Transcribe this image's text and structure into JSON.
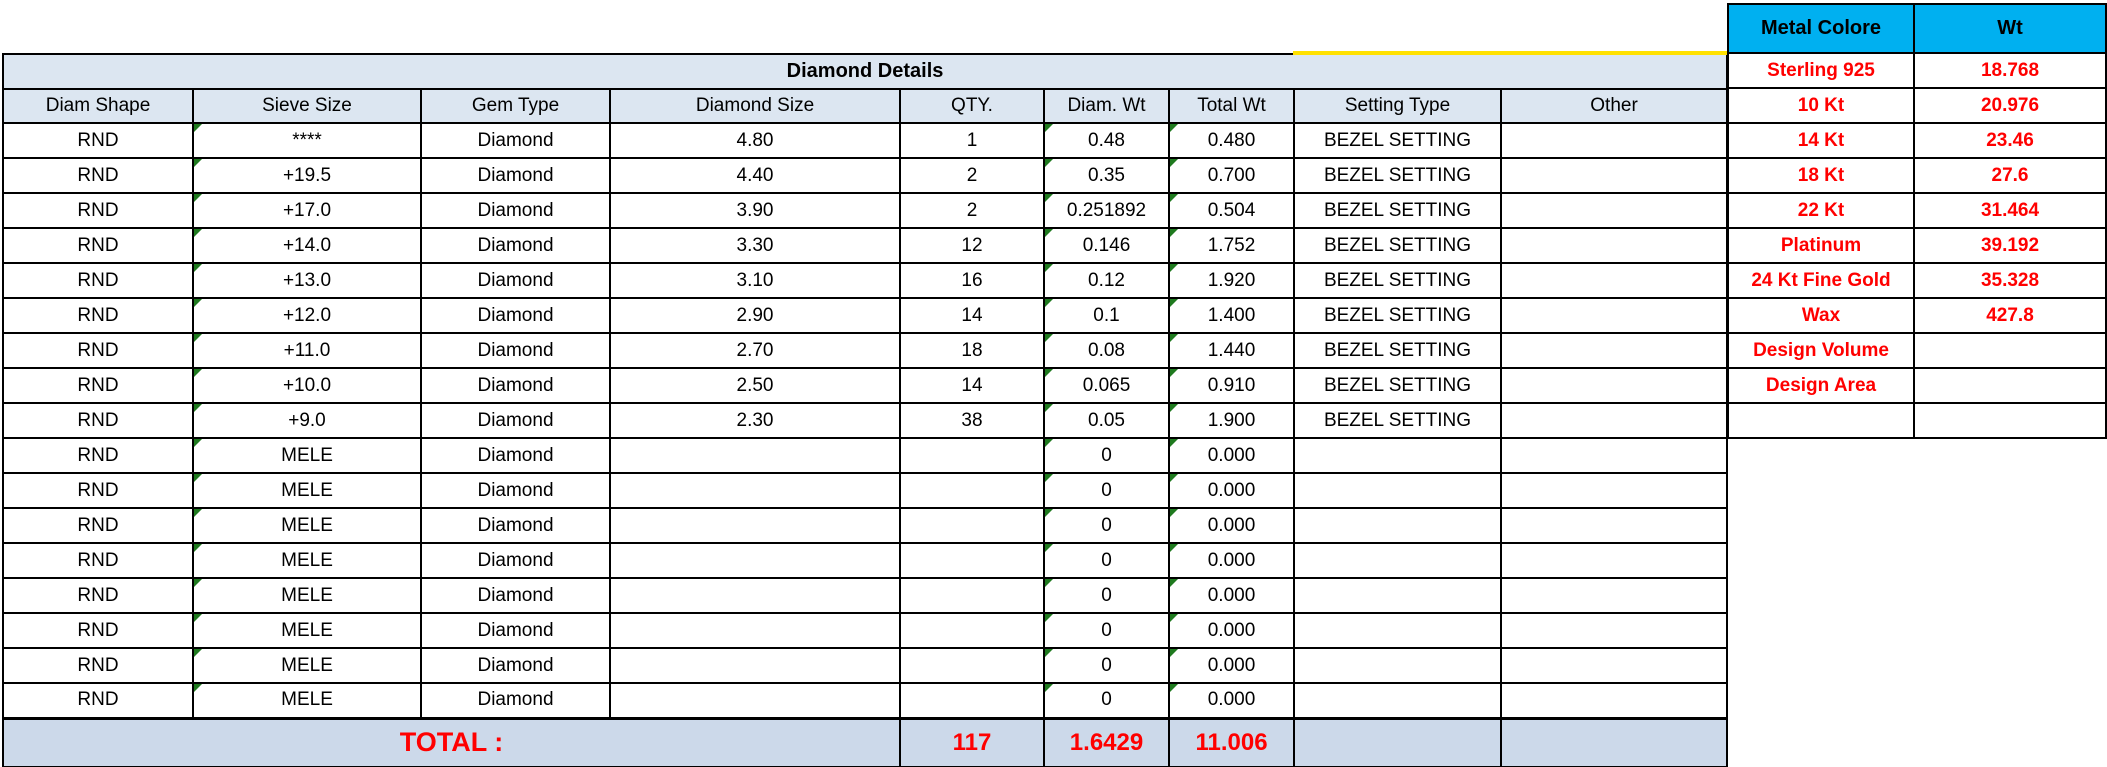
{
  "main_table": {
    "title": "Diamond Details",
    "headers": [
      "Diam Shape",
      "Sieve Size",
      "Gem Type",
      "Diamond Size",
      "QTY.",
      "Diam. Wt",
      "Total Wt",
      "Setting Type",
      "Other"
    ],
    "rows": [
      [
        "RND",
        "****",
        "Diamond",
        "4.80",
        "1",
        "0.48",
        "0.480",
        "BEZEL SETTING",
        ""
      ],
      [
        "RND",
        "+19.5",
        "Diamond",
        "4.40",
        "2",
        "0.35",
        "0.700",
        "BEZEL SETTING",
        ""
      ],
      [
        "RND",
        "+17.0",
        "Diamond",
        "3.90",
        "2",
        "0.251892",
        "0.504",
        "BEZEL SETTING",
        ""
      ],
      [
        "RND",
        "+14.0",
        "Diamond",
        "3.30",
        "12",
        "0.146",
        "1.752",
        "BEZEL SETTING",
        ""
      ],
      [
        "RND",
        "+13.0",
        "Diamond",
        "3.10",
        "16",
        "0.12",
        "1.920",
        "BEZEL SETTING",
        ""
      ],
      [
        "RND",
        "+12.0",
        "Diamond",
        "2.90",
        "14",
        "0.1",
        "1.400",
        "BEZEL SETTING",
        ""
      ],
      [
        "RND",
        "+11.0",
        "Diamond",
        "2.70",
        "18",
        "0.08",
        "1.440",
        "BEZEL SETTING",
        ""
      ],
      [
        "RND",
        "+10.0",
        "Diamond",
        "2.50",
        "14",
        "0.065",
        "0.910",
        "BEZEL SETTING",
        ""
      ],
      [
        "RND",
        "+9.0",
        "Diamond",
        "2.30",
        "38",
        "0.05",
        "1.900",
        "BEZEL SETTING",
        ""
      ],
      [
        "RND",
        "MELE",
        "Diamond",
        "",
        "",
        "0",
        "0.000",
        "",
        ""
      ],
      [
        "RND",
        "MELE",
        "Diamond",
        "",
        "",
        "0",
        "0.000",
        "",
        ""
      ],
      [
        "RND",
        "MELE",
        "Diamond",
        "",
        "",
        "0",
        "0.000",
        "",
        ""
      ],
      [
        "RND",
        "MELE",
        "Diamond",
        "",
        "",
        "0",
        "0.000",
        "",
        ""
      ],
      [
        "RND",
        "MELE",
        "Diamond",
        "",
        "",
        "0",
        "0.000",
        "",
        ""
      ],
      [
        "RND",
        "MELE",
        "Diamond",
        "",
        "",
        "0",
        "0.000",
        "",
        ""
      ],
      [
        "RND",
        "MELE",
        "Diamond",
        "",
        "",
        "0",
        "0.000",
        "",
        ""
      ],
      [
        "RND",
        "MELE",
        "Diamond",
        "",
        "",
        "0",
        "0.000",
        "",
        ""
      ]
    ],
    "total": {
      "label": "TOTAL :",
      "qty": "117",
      "diam_wt": "1.6429",
      "total_wt": "11.006"
    }
  },
  "metal_table": {
    "headers": [
      "Metal Colore",
      "Wt"
    ],
    "rows": [
      [
        "Sterling 925",
        "18.768"
      ],
      [
        "10 Kt",
        "20.976"
      ],
      [
        "14 Kt",
        "23.46"
      ],
      [
        "18 Kt",
        "27.6"
      ],
      [
        "22 Kt",
        "31.464"
      ],
      [
        "Platinum",
        "39.192"
      ],
      [
        "24 Kt Fine Gold",
        "35.328"
      ],
      [
        "Wax",
        "427.8"
      ],
      [
        "Design Volume",
        ""
      ],
      [
        "Design Area",
        ""
      ],
      [
        "",
        ""
      ]
    ]
  },
  "icons": {
    "error_indicator": "excel-error-indicator-triangle"
  },
  "colors": {
    "band": "#dce6f1",
    "total_bg": "#ccd9ea",
    "cyan": "#00b0f0",
    "red": "#ff0000",
    "yellow": "#ffe100",
    "grid": "#000000",
    "tri": "#1f7a1f",
    "bg": "#ffffff"
  }
}
